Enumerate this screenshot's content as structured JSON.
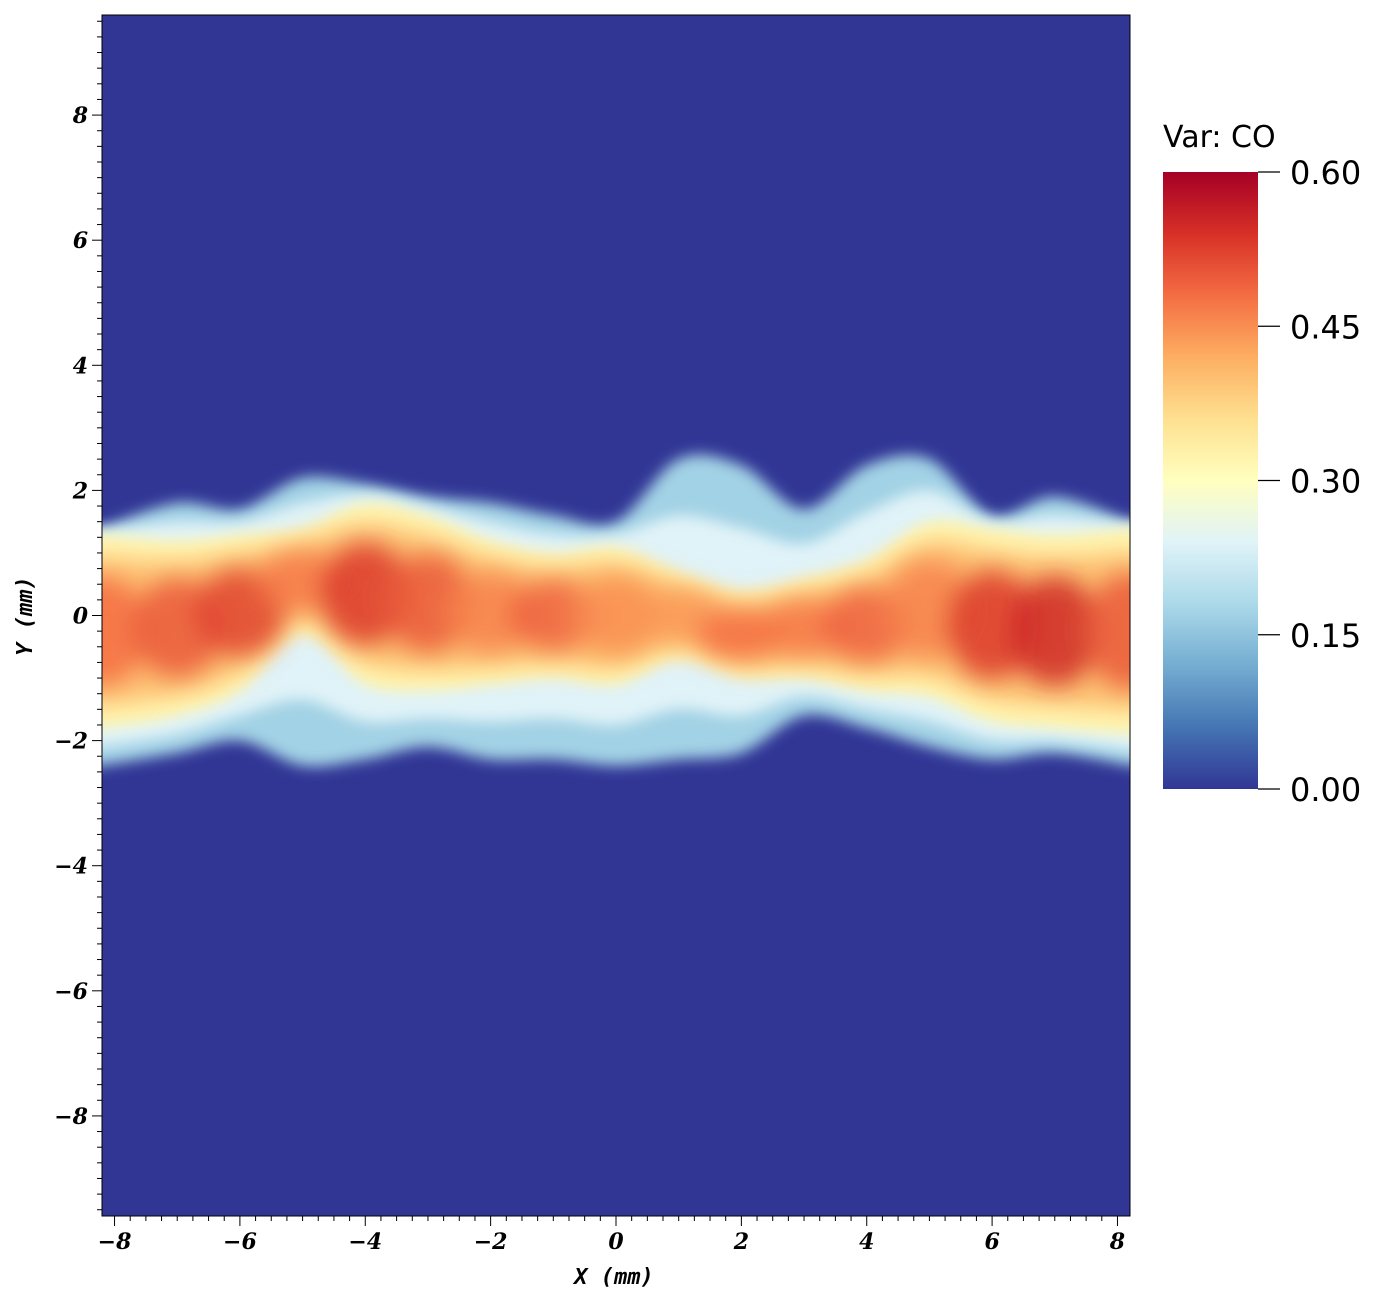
{
  "chart_data": {
    "type": "heatmap",
    "field": "CO",
    "xlabel": "X (mm)",
    "ylabel": "Y (mm)",
    "xlim": [
      -8.2,
      8.2
    ],
    "ylim": [
      -9.6,
      9.6
    ],
    "xticks": [
      -8,
      -6,
      -4,
      -2,
      0,
      2,
      4,
      6,
      8
    ],
    "yticks": [
      -8,
      -6,
      -4,
      -2,
      0,
      2,
      4,
      6,
      8
    ],
    "xtick_labels": [
      "−8",
      "−6",
      "−4",
      "−2",
      "0",
      "2",
      "4",
      "6",
      "8"
    ],
    "ytick_labels": [
      "−8",
      "−6",
      "−4",
      "−2",
      "0",
      "2",
      "4",
      "6",
      "8"
    ],
    "colorbar": {
      "title": "Var: CO",
      "range": [
        0.0,
        0.6
      ],
      "ticks": [
        0.0,
        0.15,
        0.3,
        0.45,
        0.6
      ],
      "tick_labels": [
        "0.00",
        "0.15",
        "0.30",
        "0.45",
        "0.60"
      ],
      "colormap": [
        "#313695",
        "#4575b4",
        "#74add1",
        "#abd9e9",
        "#e0f3f8",
        "#ffffbf",
        "#fee090",
        "#fdae61",
        "#f46d43",
        "#d73027",
        "#a50026"
      ]
    },
    "background_value": 0.0,
    "band": {
      "description_points_x": [
        -8.2,
        -7,
        -6,
        -5,
        -4,
        -3,
        -2,
        -1,
        0,
        1,
        2,
        3,
        4,
        5,
        6,
        7,
        8.2
      ],
      "outer_top_y": [
        1.4,
        1.8,
        1.7,
        2.2,
        2.1,
        1.9,
        1.8,
        1.6,
        1.5,
        2.5,
        2.4,
        1.7,
        2.4,
        2.5,
        1.6,
        1.9,
        1.5
      ],
      "outer_bottom_y": [
        -2.4,
        -2.2,
        -2.0,
        -2.4,
        -2.3,
        -2.1,
        -2.3,
        -2.3,
        -2.4,
        -2.3,
        -2.2,
        -1.6,
        -1.8,
        -2.1,
        -2.3,
        -2.2,
        -2.4
      ],
      "core_top_y": [
        1.3,
        1.2,
        1.3,
        1.4,
        1.8,
        1.6,
        1.2,
        1.0,
        1.1,
        0.7,
        0.4,
        0.6,
        0.9,
        1.5,
        1.4,
        1.3,
        1.4
      ],
      "core_bottom_y": [
        -1.8,
        -1.6,
        -1.2,
        -0.3,
        -1.1,
        -1.2,
        -1.1,
        -1.0,
        -1.1,
        -0.7,
        -1.0,
        -1.0,
        -1.2,
        -1.3,
        -1.7,
        -1.8,
        -1.9
      ],
      "peak_values": [
        0.48,
        0.5,
        0.52,
        0.47,
        0.53,
        0.5,
        0.46,
        0.49,
        0.45,
        0.44,
        0.48,
        0.47,
        0.49,
        0.46,
        0.53,
        0.55,
        0.5
      ]
    }
  }
}
